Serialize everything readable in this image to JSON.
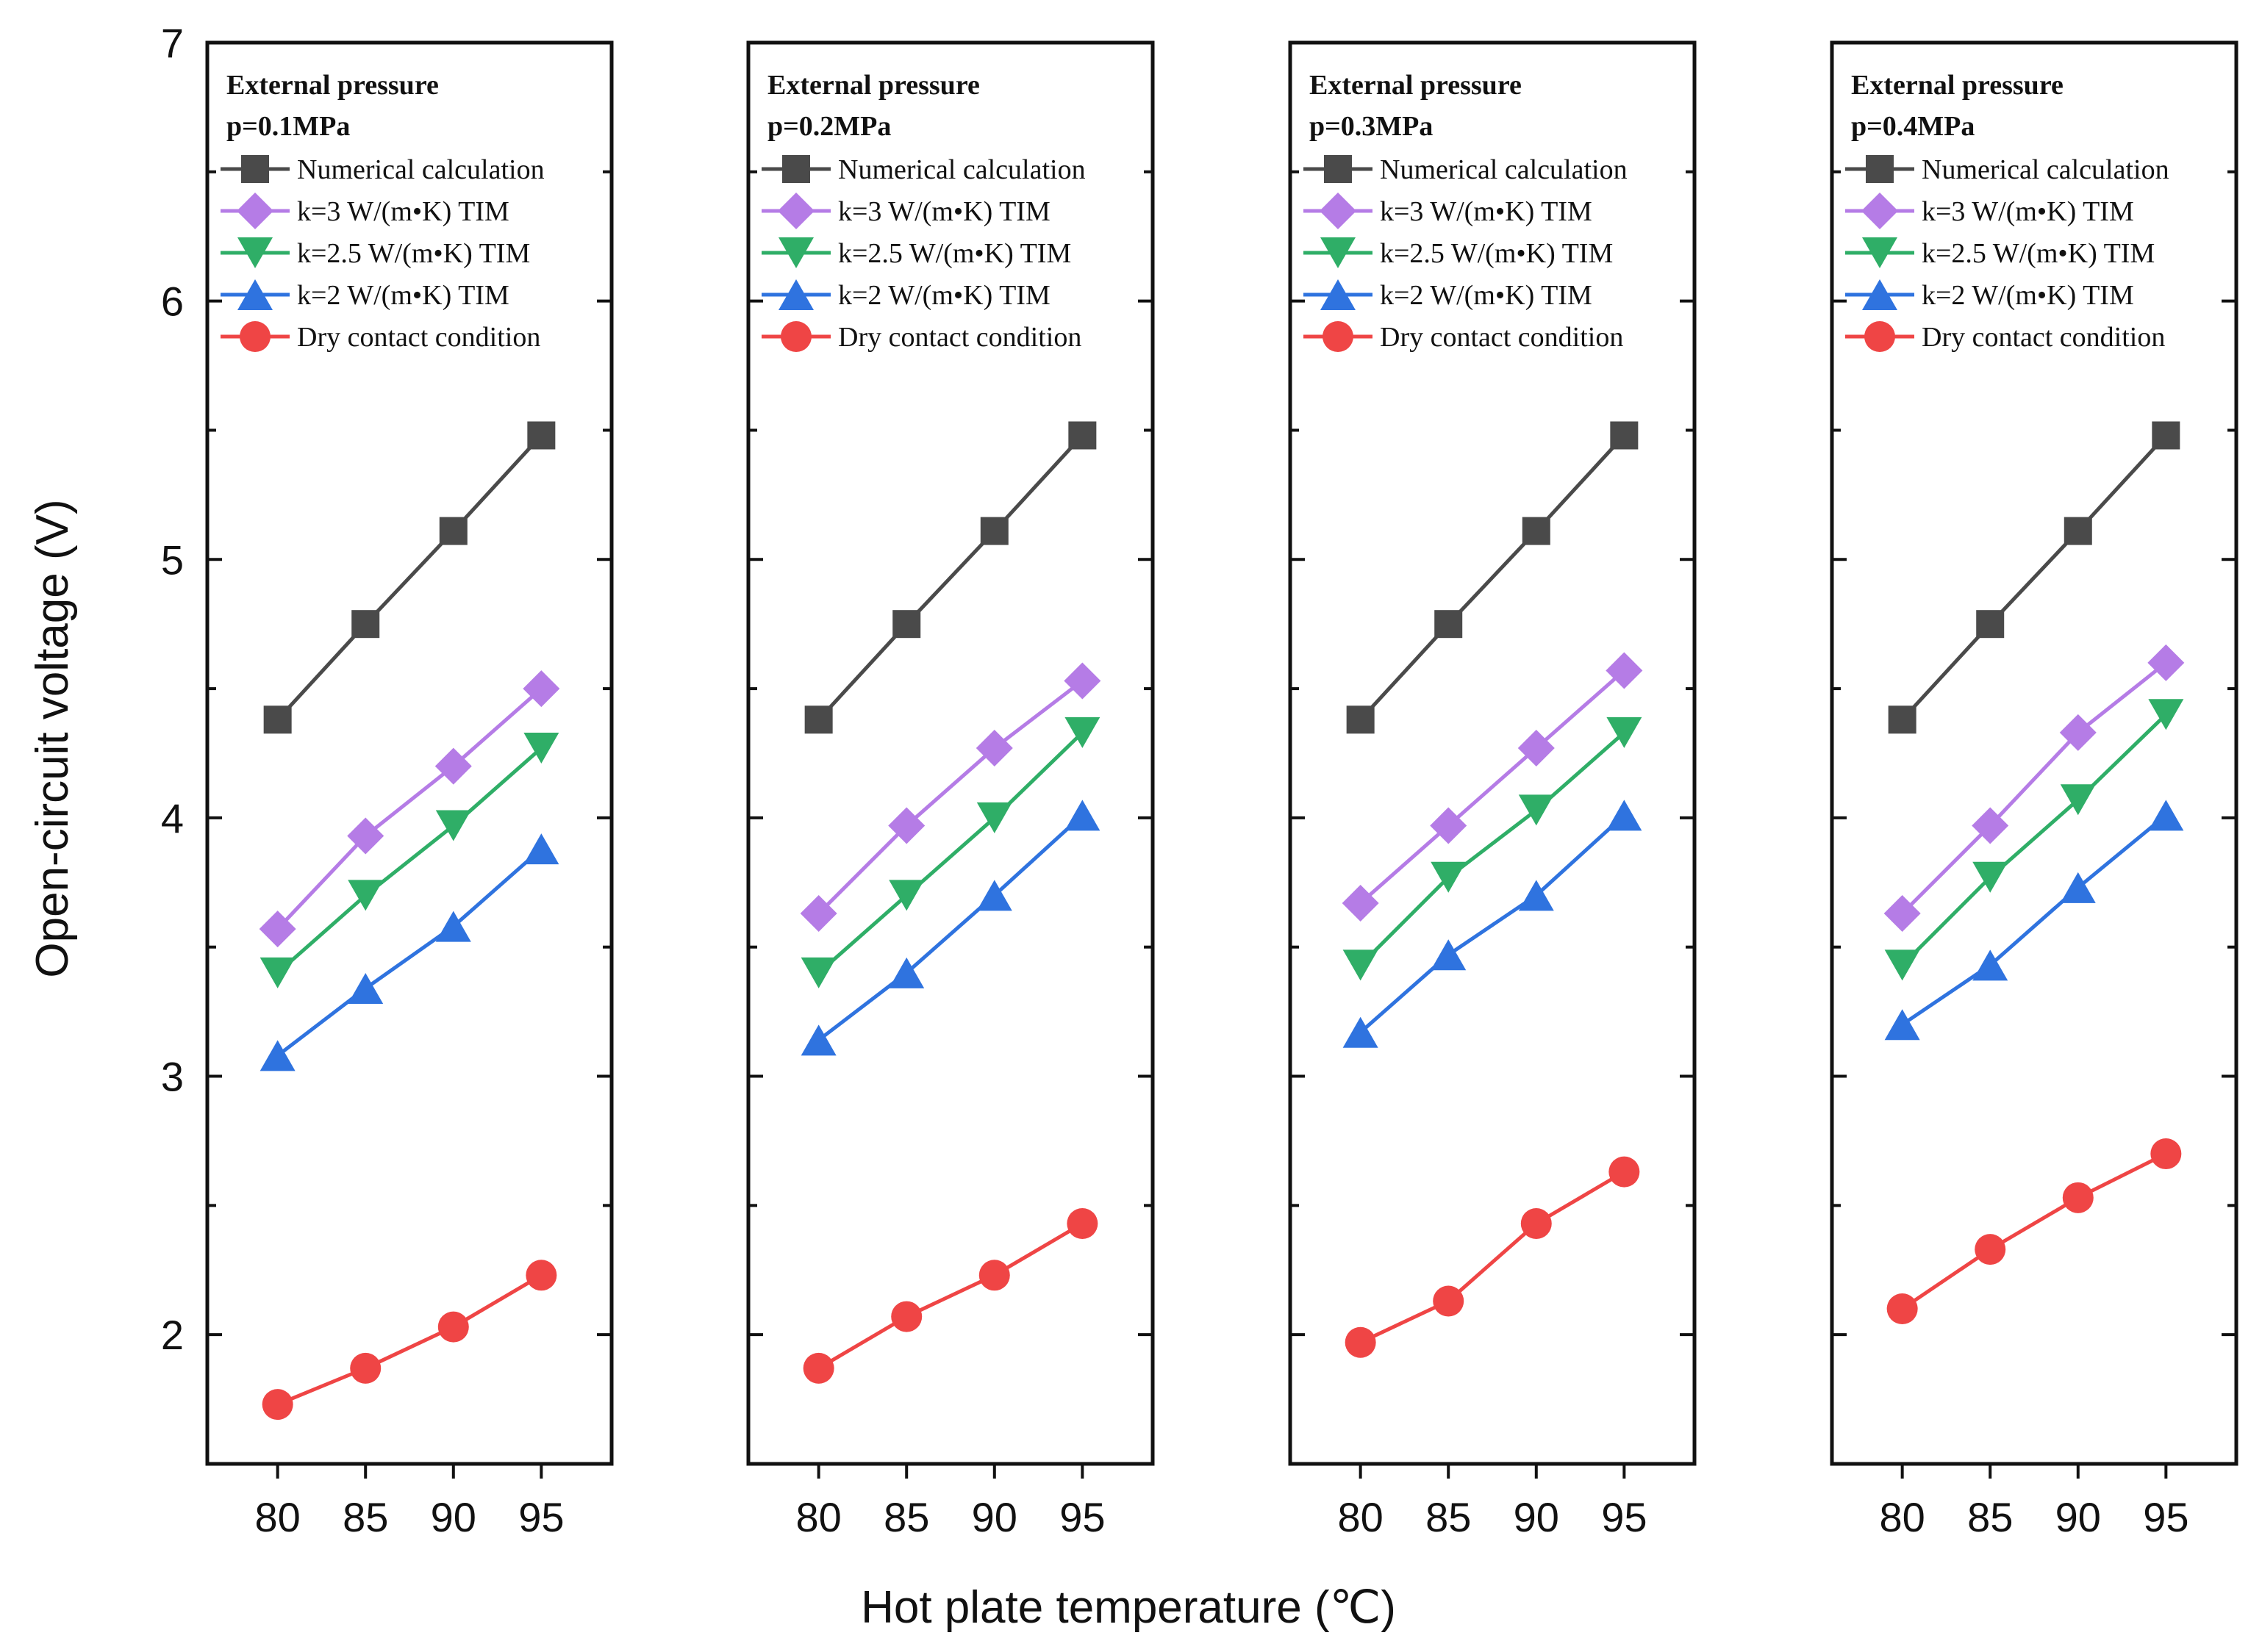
{
  "chart_data": {
    "type": "line",
    "ylabel": "Open-circuit voltage (V)",
    "xlabel": "Hot plate temperature (℃)",
    "ylim": [
      1.5,
      7
    ],
    "yticks": [
      2,
      3,
      4,
      5,
      6,
      7
    ],
    "x": [
      80,
      85,
      90,
      95
    ],
    "xlim": [
      76,
      99
    ],
    "legend_placement": "top-left",
    "series_styles": [
      {
        "name": "Numerical calculation",
        "color": "#4a4a4a",
        "marker": "square"
      },
      {
        "name": "k=3 W/(m•K) TIM",
        "color": "#b57ce6",
        "marker": "diamond"
      },
      {
        "name": "k=2.5 W/(m•K) TIM",
        "color": "#2fae67",
        "marker": "triangle-down"
      },
      {
        "name": "k=2 W/(m•K) TIM",
        "color": "#2f73df",
        "marker": "triangle-up"
      },
      {
        "name": "Dry contact condition",
        "color": "#ef4545",
        "marker": "circle"
      }
    ],
    "panels": [
      {
        "title_line1": "External pressure",
        "title_line2": "p=0.1MPa",
        "series": [
          {
            "name": "Numerical calculation",
            "values": [
              4.38,
              4.75,
              5.11,
              5.48
            ]
          },
          {
            "name": "k=3 W/(m•K) TIM",
            "values": [
              3.57,
              3.93,
              4.2,
              4.5
            ]
          },
          {
            "name": "k=2.5 W/(m•K) TIM",
            "values": [
              3.4,
              3.7,
              3.97,
              4.27
            ]
          },
          {
            "name": "k=2 W/(m•K) TIM",
            "values": [
              3.08,
              3.34,
              3.58,
              3.88
            ]
          },
          {
            "name": "Dry contact condition",
            "values": [
              1.73,
              1.87,
              2.03,
              2.23
            ]
          }
        ]
      },
      {
        "title_line1": "External pressure",
        "title_line2": "p=0.2MPa",
        "series": [
          {
            "name": "Numerical calculation",
            "values": [
              4.38,
              4.75,
              5.11,
              5.48
            ]
          },
          {
            "name": "k=3 W/(m•K) TIM",
            "values": [
              3.63,
              3.97,
              4.27,
              4.53
            ]
          },
          {
            "name": "k=2.5 W/(m•K) TIM",
            "values": [
              3.4,
              3.7,
              4.0,
              4.33
            ]
          },
          {
            "name": "k=2 W/(m•K) TIM",
            "values": [
              3.14,
              3.4,
              3.7,
              4.01
            ]
          },
          {
            "name": "Dry contact condition",
            "values": [
              1.87,
              2.07,
              2.23,
              2.43
            ]
          }
        ]
      },
      {
        "title_line1": "External pressure",
        "title_line2": "p=0.3MPa",
        "series": [
          {
            "name": "Numerical calculation",
            "values": [
              4.38,
              4.75,
              5.11,
              5.48
            ]
          },
          {
            "name": "k=3 W/(m•K) TIM",
            "values": [
              3.67,
              3.97,
              4.27,
              4.57
            ]
          },
          {
            "name": "k=2.5 W/(m•K) TIM",
            "values": [
              3.43,
              3.77,
              4.03,
              4.33
            ]
          },
          {
            "name": "k=2 W/(m•K) TIM",
            "values": [
              3.17,
              3.47,
              3.7,
              4.01
            ]
          },
          {
            "name": "Dry contact condition",
            "values": [
              1.97,
              2.13,
              2.43,
              2.63
            ]
          }
        ]
      },
      {
        "title_line1": "External pressure",
        "title_line2": "p=0.4MPa",
        "series": [
          {
            "name": "Numerical calculation",
            "values": [
              4.38,
              4.75,
              5.11,
              5.48
            ]
          },
          {
            "name": "k=3 W/(m•K) TIM",
            "values": [
              3.63,
              3.97,
              4.33,
              4.6
            ]
          },
          {
            "name": "k=2.5 W/(m•K) TIM",
            "values": [
              3.43,
              3.77,
              4.07,
              4.4
            ]
          },
          {
            "name": "k=2 W/(m•K) TIM",
            "values": [
              3.2,
              3.43,
              3.73,
              4.01
            ]
          },
          {
            "name": "Dry contact condition",
            "values": [
              2.1,
              2.33,
              2.53,
              2.7
            ]
          }
        ]
      }
    ]
  }
}
